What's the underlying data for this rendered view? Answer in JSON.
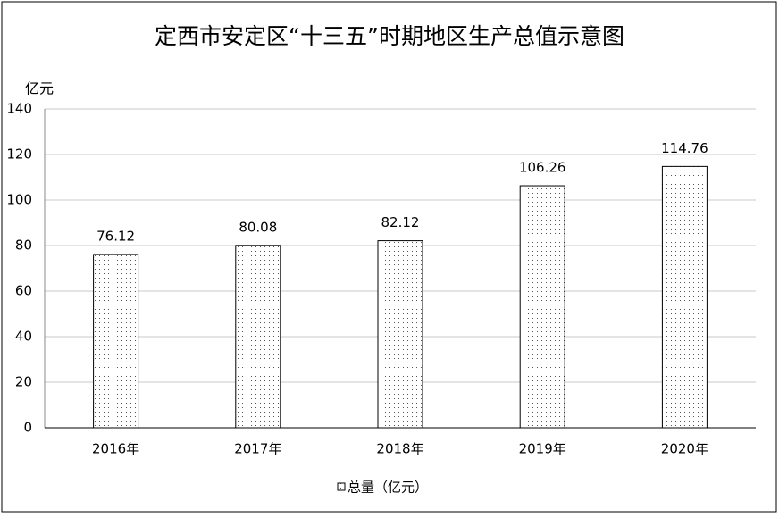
{
  "chart_data": {
    "type": "bar",
    "title": "定西市安定区“十三五”时期地区生产总值示意图",
    "y_label": "亿元",
    "categories": [
      "2016年",
      "2017年",
      "2018年",
      "2019年",
      "2020年"
    ],
    "series": [
      {
        "name": "总量（亿元）",
        "color": "#ffffff",
        "values": [
          76.12,
          80.08,
          82.12,
          106.26,
          114.76
        ]
      }
    ],
    "ylim": [
      0,
      140
    ],
    "yticks": [
      0,
      20,
      40,
      60,
      80,
      100,
      120,
      140
    ],
    "grid": true,
    "legend": "bottom"
  }
}
